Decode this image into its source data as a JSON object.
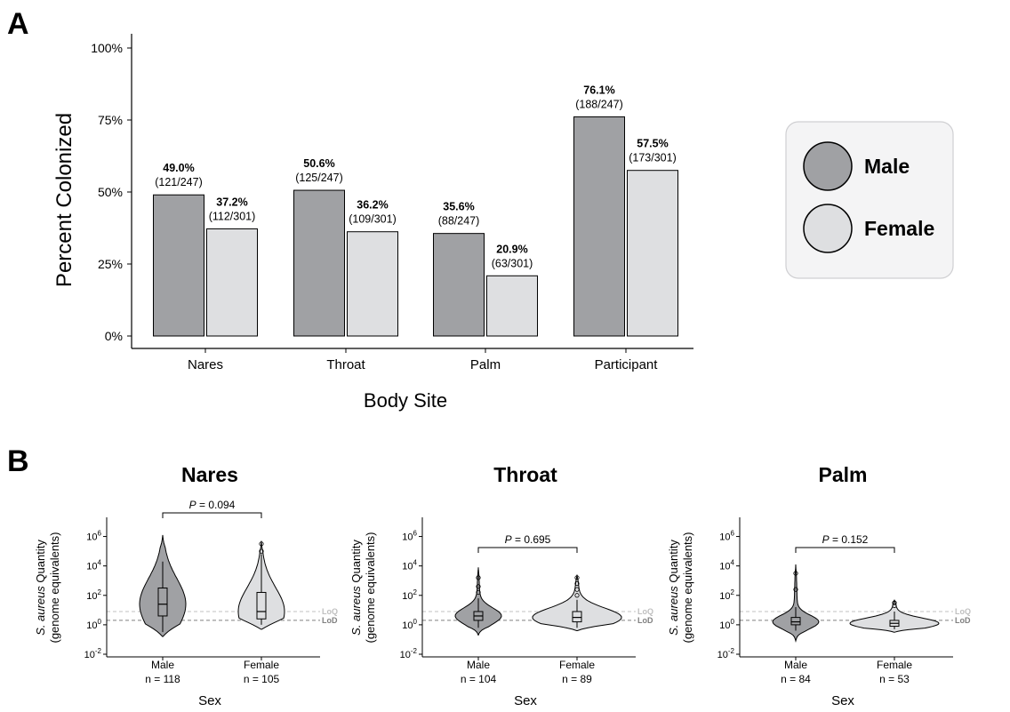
{
  "chart_data": [
    {
      "panel_label": "A",
      "type": "bar",
      "xlabel": "Body Site",
      "ylabel": "Percent Colonized",
      "ylim": [
        0,
        100
      ],
      "yticks": [
        "0%",
        "25%",
        "50%",
        "75%",
        "100%"
      ],
      "grid": false,
      "legend": {
        "placement": "right",
        "entries": [
          "Male",
          "Female"
        ]
      },
      "categories": [
        "Nares",
        "Throat",
        "Palm",
        "Participant"
      ],
      "series": [
        {
          "name": "Male",
          "color": "#a0a1a4",
          "values": [
            49.0,
            50.6,
            35.6,
            76.1
          ],
          "pct_labels": [
            "49.0%",
            "50.6%",
            "35.6%",
            "76.1%"
          ],
          "count_labels": [
            "(121/247)",
            "(125/247)",
            "(88/247)",
            "(188/247)"
          ]
        },
        {
          "name": "Female",
          "color": "#dedfe1",
          "values": [
            37.2,
            36.2,
            20.9,
            57.5
          ],
          "pct_labels": [
            "37.2%",
            "36.2%",
            "20.9%",
            "57.5%"
          ],
          "count_labels": [
            "(112/301)",
            "(109/301)",
            "(63/301)",
            "(173/301)"
          ]
        }
      ]
    },
    {
      "panel_label": "B",
      "type": "violin",
      "ylabel_italic": "S. aureus",
      "ylabel_rest": "Quantity",
      "ylabel_line2": "(genome equivalents)",
      "xlabel": "Sex",
      "yscale": "log10",
      "ylim_log10": [
        -2,
        7
      ],
      "yticks": [
        "10-2",
        "100",
        "102",
        "104",
        "106"
      ],
      "reference_lines": [
        {
          "label": "LoQ",
          "value_log10": 0.9,
          "color": "#c0c0c0"
        },
        {
          "label": "LoD",
          "value_log10": 0.3,
          "color": "#808080"
        }
      ],
      "panels": [
        {
          "title": "Nares",
          "p_label": "P",
          "p_value": " = 0.094",
          "groups": [
            {
              "name": "Male",
              "n": "n = 118",
              "color": "#a0a1a4",
              "min": -0.8,
              "max": 6.1,
              "q1": 0.6,
              "median": 1.4,
              "q3": 2.5,
              "whisker_low": -0.5,
              "whisker_high": 4.3,
              "outliers": []
            },
            {
              "name": "Female",
              "n": "n = 105",
              "color": "#dedfe1",
              "min": -0.3,
              "max": 5.7,
              "q1": 0.4,
              "median": 0.9,
              "q3": 2.2,
              "whisker_low": 0.0,
              "whisker_high": 4.8,
              "outliers": [
                5.0,
                5.5
              ]
            }
          ]
        },
        {
          "title": "Throat",
          "p_label": "P",
          "p_value": " = 0.695",
          "groups": [
            {
              "name": "Male",
              "n": "n = 104",
              "color": "#a0a1a4",
              "min": -0.7,
              "max": 3.9,
              "q1": 0.3,
              "median": 0.6,
              "q3": 0.9,
              "whisker_low": -0.2,
              "whisker_high": 1.8,
              "outliers": [
                2.2,
                2.6,
                3.2
              ]
            },
            {
              "name": "Female",
              "n": "n = 89",
              "color": "#dedfe1",
              "min": -0.4,
              "max": 3.4,
              "q1": 0.2,
              "median": 0.5,
              "q3": 0.9,
              "whisker_low": -0.2,
              "whisker_high": 1.7,
              "outliers": [
                2.0,
                2.4,
                2.8,
                3.2
              ]
            }
          ]
        },
        {
          "title": "Palm",
          "p_label": "P",
          "p_value": " = 0.152",
          "groups": [
            {
              "name": "Male",
              "n": "n = 84",
              "color": "#a0a1a4",
              "min": -1.1,
              "max": 4.1,
              "q1": 0.0,
              "median": 0.2,
              "q3": 0.5,
              "whisker_low": -0.4,
              "whisker_high": 1.2,
              "outliers": [
                2.4,
                3.5
              ]
            },
            {
              "name": "Female",
              "n": "n = 53",
              "color": "#dedfe1",
              "min": -0.5,
              "max": 1.7,
              "q1": -0.1,
              "median": 0.1,
              "q3": 0.3,
              "whisker_low": -0.3,
              "whisker_high": 0.9,
              "outliers": [
                1.3,
                1.5
              ]
            }
          ]
        }
      ]
    }
  ]
}
